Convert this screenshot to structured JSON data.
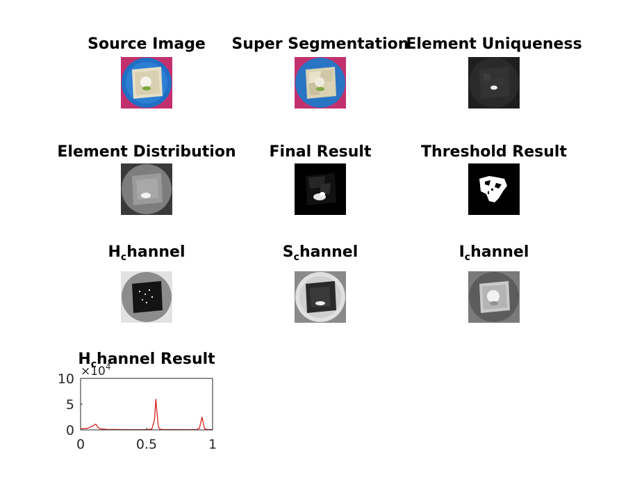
{
  "panels": {
    "source_image": "Source Image",
    "super_segmentation": "Super Segmentation",
    "element_uniqueness": "Element Uniqueness",
    "element_distribution": "Element Distribution",
    "final_result": "Final Result",
    "threshold_result": "Threshold Result",
    "h_channel": {
      "main": "H",
      "sub": "c",
      "rest": "hannel"
    },
    "s_channel": {
      "main": "S",
      "sub": "c",
      "rest": "hannel"
    },
    "i_channel": {
      "main": "I",
      "sub": "c",
      "rest": "hannel"
    },
    "h_result": {
      "main": "H",
      "sub": "c",
      "rest": "hannel Result"
    }
  },
  "colors": {
    "plate": "#1f6fc4",
    "background_magenta": "#c2306e",
    "cake": "#e4dfc6",
    "line": "#d62020"
  },
  "chart_data": {
    "type": "line",
    "title": "H_channel Result",
    "xlim": [
      0,
      1
    ],
    "ylim": [
      0,
      100000
    ],
    "exponent_label": "×10",
    "exponent_power": "4",
    "x_ticks": [
      "0",
      "0.5",
      "1"
    ],
    "y_ticks": [
      "0",
      "5",
      "10"
    ],
    "x_tick_values": [
      0,
      0.5,
      1
    ],
    "y_tick_values": [
      0,
      50000,
      100000
    ],
    "series": [
      {
        "color": "#d62020",
        "x": [
          0,
          0.05,
          0.09,
          0.11,
          0.12,
          0.13,
          0.15,
          0.2,
          0.3,
          0.4,
          0.5,
          0.54,
          0.56,
          0.57,
          0.58,
          0.59,
          0.6,
          0.62,
          0.7,
          0.8,
          0.88,
          0.9,
          0.91,
          0.92,
          0.93,
          0.94,
          0.96,
          1.0
        ],
        "y": [
          2000,
          3000,
          7000,
          11000,
          10000,
          5000,
          2000,
          1000,
          700,
          600,
          700,
          1500,
          20000,
          60000,
          30000,
          5000,
          1500,
          800,
          700,
          600,
          800,
          3000,
          14000,
          25000,
          12000,
          2000,
          800,
          500
        ]
      }
    ]
  }
}
